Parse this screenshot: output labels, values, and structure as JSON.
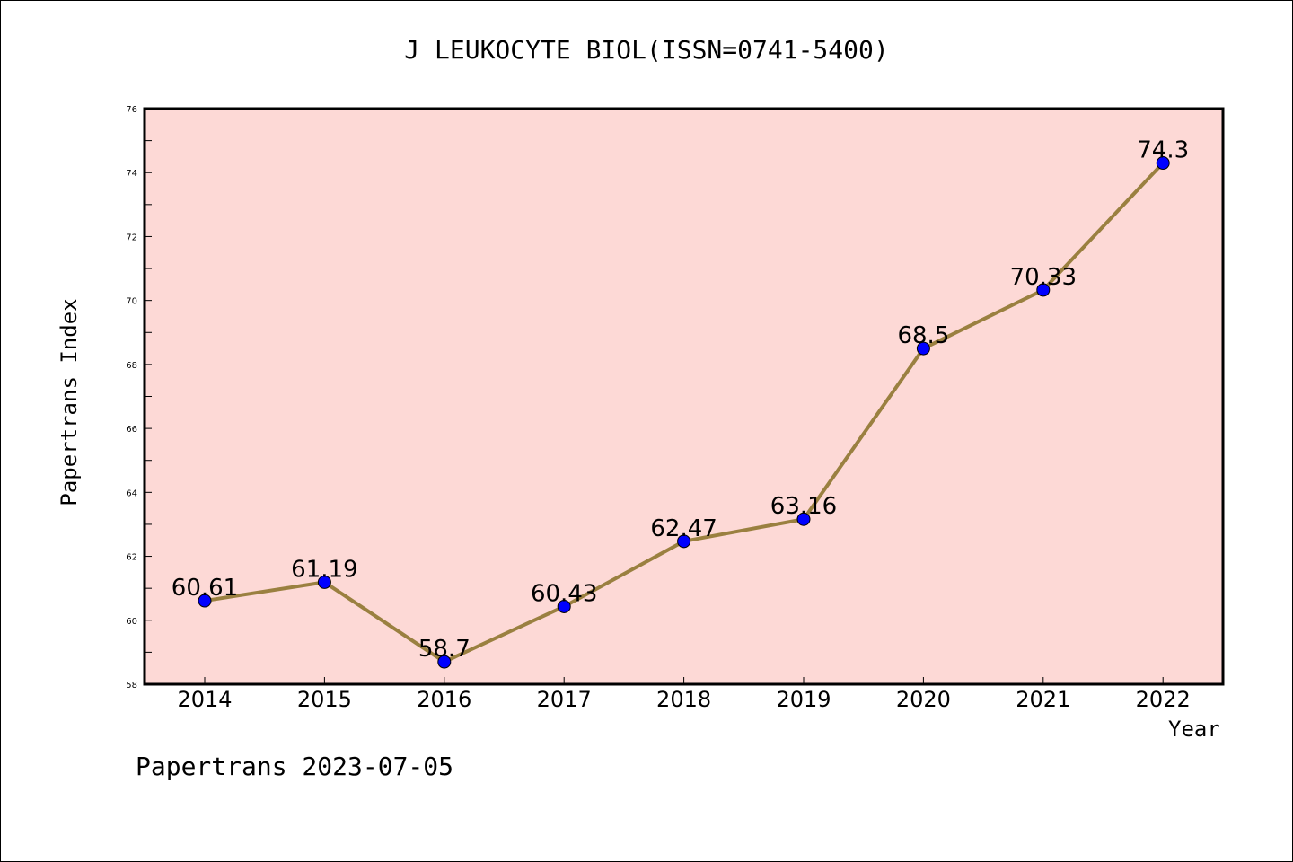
{
  "chart_data": {
    "type": "line",
    "title": "J LEUKOCYTE BIOL(ISSN=0741-5400)",
    "xlabel": "Year",
    "ylabel": "Papertrans Index",
    "categories": [
      "2014",
      "2015",
      "2016",
      "2017",
      "2018",
      "2019",
      "2020",
      "2021",
      "2022"
    ],
    "series": [
      {
        "values": [
          60.61,
          61.19,
          58.7,
          60.43,
          62.47,
          63.16,
          68.5,
          70.33,
          74.3
        ],
        "data_labels": [
          "60.61",
          "61.19",
          "58.7",
          "60.43",
          "62.47",
          "63.16",
          "68.5",
          "70.33",
          "74.3"
        ]
      }
    ],
    "ylim": [
      58,
      76
    ],
    "y_ticks": [
      "58",
      "60",
      "62",
      "64",
      "66",
      "68",
      "70",
      "72",
      "74",
      "76"
    ],
    "grid": false,
    "colors": {
      "plot_background": "#fdd9d6",
      "line": "#9a8040",
      "marker": "#0000ff"
    }
  },
  "footer": "Papertrans 2023-07-05"
}
